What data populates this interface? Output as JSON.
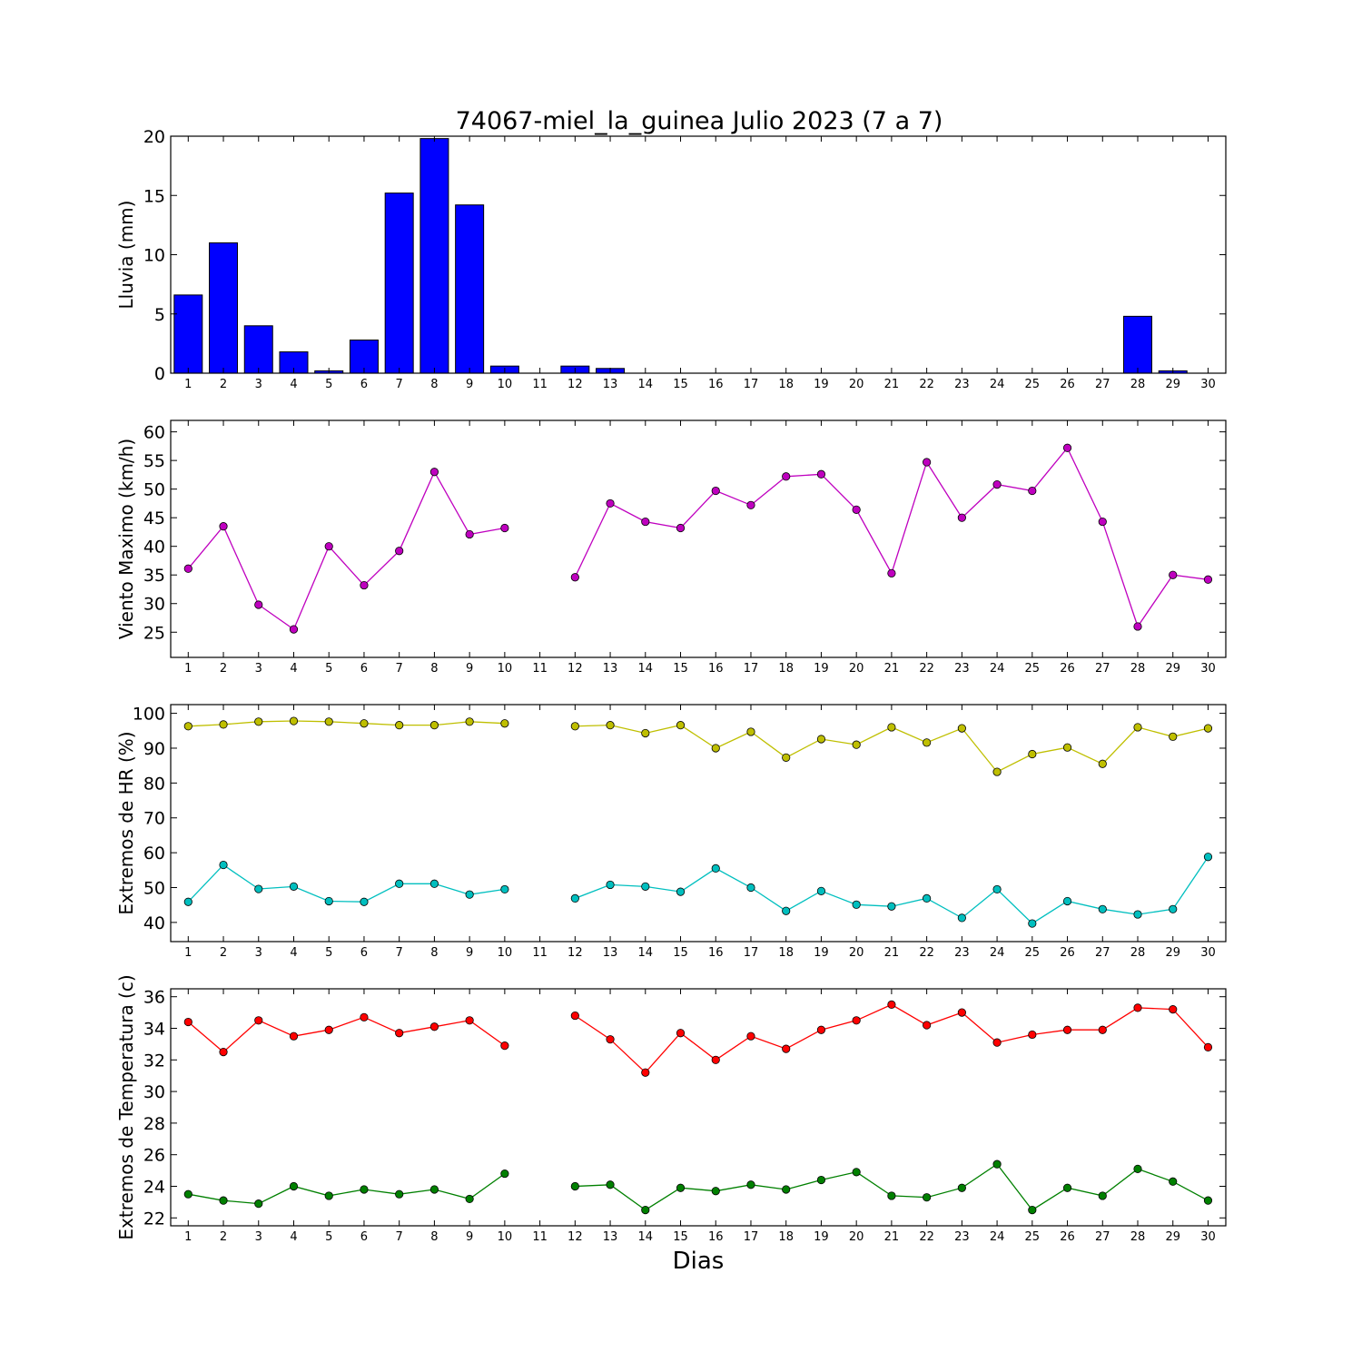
{
  "figure": {
    "title": "74067-miel_la_guinea Julio 2023  (7 a 7)",
    "xlabel": "Dias"
  },
  "chart_data": [
    {
      "type": "bar",
      "ylabel": "Lluvia (mm)",
      "ylim": [
        0,
        20
      ],
      "yticks": [
        0,
        5,
        10,
        15,
        20
      ],
      "x": [
        1,
        2,
        3,
        4,
        5,
        6,
        7,
        8,
        9,
        10,
        11,
        12,
        13,
        14,
        15,
        16,
        17,
        18,
        19,
        20,
        21,
        22,
        23,
        24,
        25,
        26,
        27,
        28,
        29,
        30
      ],
      "values": [
        6.6,
        11.0,
        4.0,
        1.8,
        0.2,
        2.8,
        15.2,
        19.8,
        14.2,
        0.6,
        null,
        0.6,
        0.4,
        0,
        0,
        0,
        0,
        0,
        0,
        0,
        0,
        0,
        0,
        0,
        0,
        0,
        0,
        4.8,
        0.2,
        0
      ],
      "color": "#0000ff"
    },
    {
      "type": "line",
      "ylabel": "Viento Maximo (km/h)",
      "ylim": [
        20.6,
        62
      ],
      "yticks": [
        25,
        30,
        35,
        40,
        45,
        50,
        55,
        60
      ],
      "x": [
        1,
        2,
        3,
        4,
        5,
        6,
        7,
        8,
        9,
        10,
        11,
        12,
        13,
        14,
        15,
        16,
        17,
        18,
        19,
        20,
        21,
        22,
        23,
        24,
        25,
        26,
        27,
        28,
        29,
        30
      ],
      "series": [
        {
          "values": [
            36.1,
            43.5,
            29.8,
            25.5,
            40.0,
            33.2,
            39.2,
            53.0,
            42.1,
            43.2,
            null,
            34.6,
            47.5,
            44.3,
            43.2,
            49.7,
            47.2,
            52.2,
            52.6,
            46.4,
            35.3,
            54.7,
            45.0,
            50.8,
            49.7,
            57.2,
            44.3,
            26.0,
            35.0,
            34.2
          ],
          "color": "#bf00bf"
        }
      ]
    },
    {
      "type": "line",
      "ylabel": "Extremos de HR (%)",
      "ylim": [
        34.5,
        102.5
      ],
      "yticks": [
        40,
        50,
        60,
        70,
        80,
        90,
        100
      ],
      "x": [
        1,
        2,
        3,
        4,
        5,
        6,
        7,
        8,
        9,
        10,
        11,
        12,
        13,
        14,
        15,
        16,
        17,
        18,
        19,
        20,
        21,
        22,
        23,
        24,
        25,
        26,
        27,
        28,
        29,
        30
      ],
      "series": [
        {
          "values": [
            96.3,
            96.8,
            97.6,
            97.8,
            97.6,
            97.1,
            96.6,
            96.6,
            97.6,
            97.1,
            null,
            96.3,
            96.6,
            94.3,
            96.6,
            90.0,
            94.7,
            87.3,
            92.6,
            91.0,
            96.0,
            91.6,
            95.7,
            83.2,
            88.3,
            90.2,
            85.5,
            96.0,
            93.3,
            95.7
          ],
          "color": "#bfbf00"
        },
        {
          "values": [
            45.9,
            56.5,
            49.6,
            50.3,
            46.1,
            45.9,
            51.1,
            51.1,
            48.0,
            49.5,
            null,
            46.9,
            50.8,
            50.3,
            48.8,
            55.5,
            50.0,
            43.3,
            49.0,
            45.1,
            44.6,
            46.9,
            41.3,
            49.5,
            39.7,
            46.1,
            43.8,
            42.3,
            43.8,
            58.8
          ],
          "color": "#00bfbf"
        }
      ]
    },
    {
      "type": "line",
      "ylabel": "Extremos de Temperatura (c)",
      "ylim": [
        21.5,
        36.5
      ],
      "yticks": [
        22,
        24,
        26,
        28,
        30,
        32,
        34,
        36
      ],
      "x": [
        1,
        2,
        3,
        4,
        5,
        6,
        7,
        8,
        9,
        10,
        11,
        12,
        13,
        14,
        15,
        16,
        17,
        18,
        19,
        20,
        21,
        22,
        23,
        24,
        25,
        26,
        27,
        28,
        29,
        30
      ],
      "series": [
        {
          "values": [
            34.4,
            32.5,
            34.5,
            33.5,
            33.9,
            34.7,
            33.7,
            34.1,
            34.5,
            32.9,
            null,
            34.8,
            33.3,
            31.2,
            33.7,
            32.0,
            33.5,
            32.7,
            33.9,
            34.5,
            35.5,
            34.2,
            35.0,
            33.1,
            33.6,
            33.9,
            33.9,
            35.3,
            35.2,
            32.8
          ],
          "color": "#ff0000"
        },
        {
          "values": [
            23.5,
            23.1,
            22.9,
            24.0,
            23.4,
            23.8,
            23.5,
            23.8,
            23.2,
            24.8,
            null,
            24.0,
            24.1,
            22.5,
            23.9,
            23.7,
            24.1,
            23.8,
            24.4,
            24.9,
            23.4,
            23.3,
            23.9,
            25.4,
            22.5,
            23.9,
            23.4,
            25.1,
            24.3,
            23.1
          ],
          "color": "#008000"
        }
      ]
    }
  ]
}
